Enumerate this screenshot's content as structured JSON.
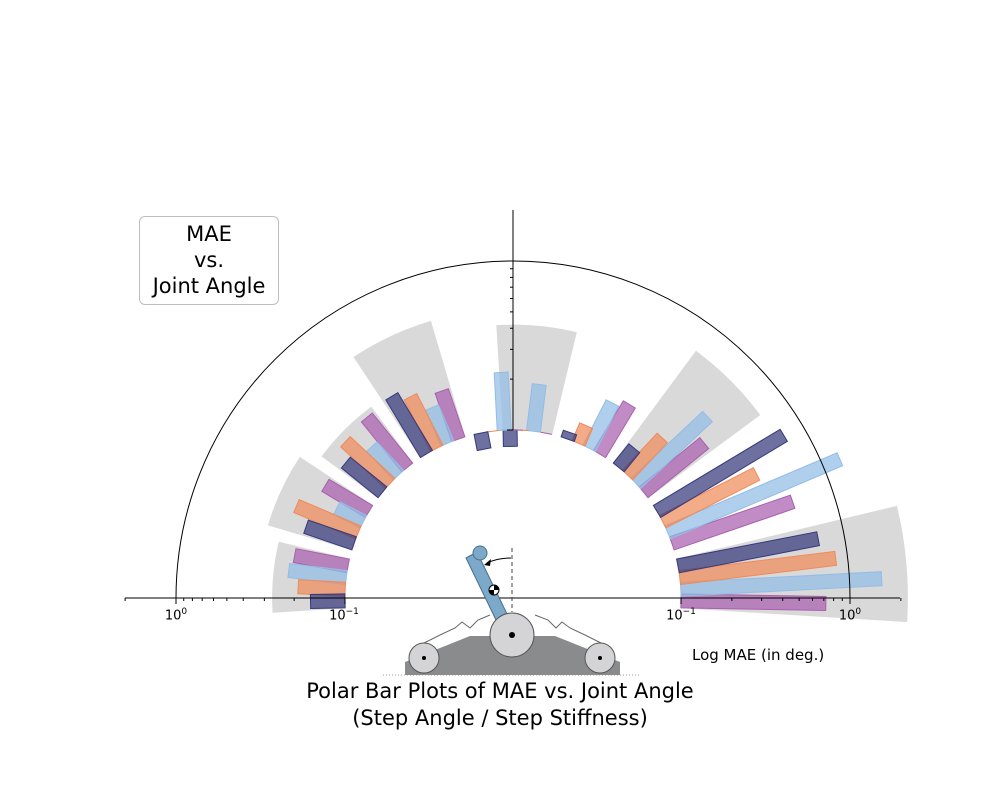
{
  "chart_data": {
    "type": "polar-bar",
    "title": [
      "Polar Bar Plots of MAE vs. Joint Angle",
      "(Step Angle / Step Stiffness)"
    ],
    "legend_text": [
      "MAE",
      "vs.",
      "Joint Angle"
    ],
    "xlabel": "Log MAE (in deg.)",
    "scale": "log",
    "rlim": [
      0.1,
      1.0
    ],
    "tick_labels_left": [
      {
        "base": "10",
        "exp": "0"
      },
      {
        "base": "10",
        "exp": "−1"
      }
    ],
    "tick_labels_right": [
      {
        "base": "10",
        "exp": "−1"
      },
      {
        "base": "10",
        "exp": "0"
      }
    ],
    "series_colors": [
      "#a95fae",
      "#92bde6",
      "#f08a5a",
      "#36397a"
    ],
    "highlight_color": "#d9d9d9",
    "groups": [
      {
        "angle_deg": 5,
        "values": [
          0.72,
          1.55,
          0.85,
          0.7
        ],
        "highlight": 2.2
      },
      {
        "angle_deg": 25,
        "values": [
          0.57,
          1.28,
          0.42,
          0.75
        ],
        "highlight": null
      },
      {
        "angle_deg": 45,
        "values": [
          0.29,
          0.38,
          0.2,
          0.14
        ],
        "highlight": 0.67
      },
      {
        "angle_deg": 65,
        "values": [
          0.22,
          0.2,
          0.13,
          0.11
        ],
        "highlight": null
      },
      {
        "angle_deg": 85,
        "values": [
          0.1,
          0.19,
          0.1,
          0.08
        ],
        "highlight": 0.42
      },
      {
        "angle_deg": 95,
        "values": [
          0.1,
          0.22,
          0.1,
          0.08
        ],
        "highlight": null
      },
      {
        "angle_deg": 115,
        "values": [
          0.2,
          0.17,
          0.22,
          0.25
        ],
        "highlight": 0.52
      },
      {
        "angle_deg": 135,
        "values": [
          0.24,
          0.17,
          0.23,
          0.19
        ],
        "highlight": 0.26
      },
      {
        "angle_deg": 155,
        "values": [
          0.2,
          0.15,
          0.25,
          0.2
        ],
        "highlight": 0.33
      },
      {
        "angle_deg": 175,
        "values": [
          0.21,
          0.22,
          0.19,
          0.16
        ],
        "highlight": 0.27
      }
    ]
  }
}
